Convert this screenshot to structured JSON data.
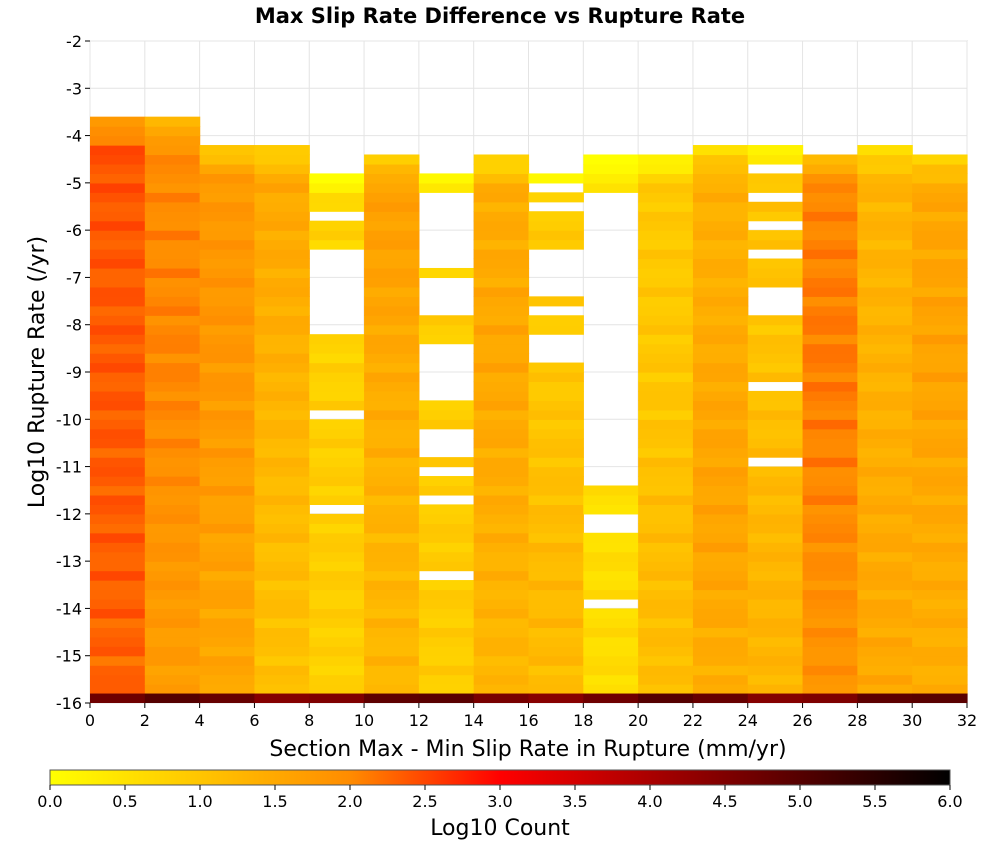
{
  "chart_data": {
    "type": "heatmap",
    "title": "Max Slip Rate Difference vs Rupture Rate",
    "xlabel": "Section Max - Min Slip Rate in Rupture (mm/yr)",
    "ylabel": "Log10 Rupture Rate (/yr)",
    "x_ticks": [
      "0",
      "2",
      "4",
      "6",
      "8",
      "10",
      "12",
      "14",
      "16",
      "18",
      "20",
      "22",
      "24",
      "26",
      "28",
      "30",
      "32"
    ],
    "y_ticks": [
      "-2",
      "-3",
      "-4",
      "-5",
      "-6",
      "-7",
      "-8",
      "-9",
      "-10",
      "-11",
      "-12",
      "-13",
      "-14",
      "-15",
      "-16"
    ],
    "xlim": [
      0,
      32
    ],
    "ylim": [
      -16,
      -2
    ],
    "x_bin_width": 2,
    "y_bin_height": 0.2,
    "grid": true,
    "colorbar": {
      "label": "Log10 Count",
      "range": [
        0,
        6
      ],
      "ticks": [
        "0.0",
        "0.5",
        "1.0",
        "1.5",
        "2.0",
        "2.5",
        "3.0",
        "3.5",
        "4.0",
        "4.5",
        "5.0",
        "5.5",
        "6.0"
      ],
      "colors": [
        "#ffff00",
        "#ff8c00",
        "#ff0000",
        "#000000"
      ],
      "stops": [
        0,
        0.333,
        0.5,
        1
      ]
    },
    "columns": [
      {
        "x": 0,
        "top": -3.6,
        "base": 2.4,
        "peak": 2.3,
        "peak_y": -6.0,
        "slope": 0.02
      },
      {
        "x": 2,
        "top": -3.6,
        "base": 1.8,
        "peak": 2.0,
        "peak_y": -9.0,
        "slope": 0.02
      },
      {
        "x": 4,
        "top": -4.2,
        "base": 1.6,
        "peak": 1.8,
        "peak_y": -8.0,
        "slope": 0.01
      },
      {
        "x": 6,
        "top": -4.2,
        "base": 1.2,
        "peak": 1.4,
        "peak_y": -6.0,
        "slope": 0.02
      },
      {
        "x": 8,
        "top": -4.8,
        "base": 0.7,
        "peak": 0.9,
        "peak_y": -13.0,
        "slope": 0.01
      },
      {
        "x": 10,
        "top": -4.4,
        "base": 1.3,
        "peak": 1.6,
        "peak_y": -5.5,
        "slope": 0.01
      },
      {
        "x": 12,
        "top": -4.8,
        "base": 0.8,
        "peak": 0.9,
        "peak_y": -12.0,
        "slope": 0.0
      },
      {
        "x": 14,
        "top": -4.4,
        "base": 1.3,
        "peak": 1.5,
        "peak_y": -9.0,
        "slope": 0.01
      },
      {
        "x": 16,
        "top": -4.8,
        "base": 0.9,
        "peak": 1.2,
        "peak_y": -14.0,
        "slope": 0.0
      },
      {
        "x": 18,
        "top": -4.4,
        "base": 0.5,
        "peak": 0.6,
        "peak_y": -15.0,
        "slope": 0.0
      },
      {
        "x": 20,
        "top": -4.4,
        "base": 0.9,
        "peak": 1.2,
        "peak_y": -14.0,
        "slope": 0.01
      },
      {
        "x": 22,
        "top": -4.2,
        "base": 1.3,
        "peak": 1.6,
        "peak_y": -12.0,
        "slope": 0.01
      },
      {
        "x": 24,
        "top": -4.2,
        "base": 1.0,
        "peak": 1.3,
        "peak_y": -14.0,
        "slope": 0.0
      },
      {
        "x": 26,
        "top": -4.4,
        "base": 1.9,
        "peak": 2.1,
        "peak_y": -9.0,
        "slope": 0.01
      },
      {
        "x": 28,
        "top": -4.2,
        "base": 1.3,
        "peak": 1.5,
        "peak_y": -14.0,
        "slope": 0.0
      },
      {
        "x": 30,
        "top": -4.4,
        "base": 1.4,
        "peak": 1.6,
        "peak_y": -8.2,
        "slope": 0.0
      }
    ],
    "gaps": [
      {
        "x": 8,
        "y_ranges": [
          [
            -5.8,
            -5.6
          ],
          [
            -8.2,
            -6.4
          ],
          [
            -10.0,
            -9.8
          ],
          [
            -12.0,
            -11.8
          ]
        ]
      },
      {
        "x": 12,
        "y_ranges": [
          [
            -6.8,
            -5.2
          ],
          [
            -7.8,
            -7.0
          ],
          [
            -9.6,
            -8.4
          ],
          [
            -10.8,
            -10.2
          ],
          [
            -11.2,
            -11.0
          ],
          [
            -11.8,
            -11.6
          ],
          [
            -13.4,
            -13.2
          ]
        ]
      },
      {
        "x": 16,
        "y_ranges": [
          [
            -5.2,
            -5.0
          ],
          [
            -5.6,
            -5.4
          ],
          [
            -7.4,
            -6.4
          ],
          [
            -7.8,
            -7.6
          ],
          [
            -8.8,
            -8.2
          ]
        ]
      },
      {
        "x": 18,
        "y_ranges": [
          [
            -11.4,
            -5.2
          ],
          [
            -12.4,
            -12.0
          ],
          [
            -14.0,
            -13.8
          ]
        ]
      },
      {
        "x": 24,
        "y_ranges": [
          [
            -4.8,
            -4.6
          ],
          [
            -5.4,
            -5.2
          ],
          [
            -6.0,
            -5.8
          ],
          [
            -6.6,
            -6.4
          ],
          [
            -7.8,
            -7.2
          ],
          [
            -9.4,
            -9.2
          ],
          [
            -11.0,
            -10.8
          ]
        ]
      }
    ],
    "bottom_row": {
      "y": -16.0,
      "value": 4.7
    }
  }
}
